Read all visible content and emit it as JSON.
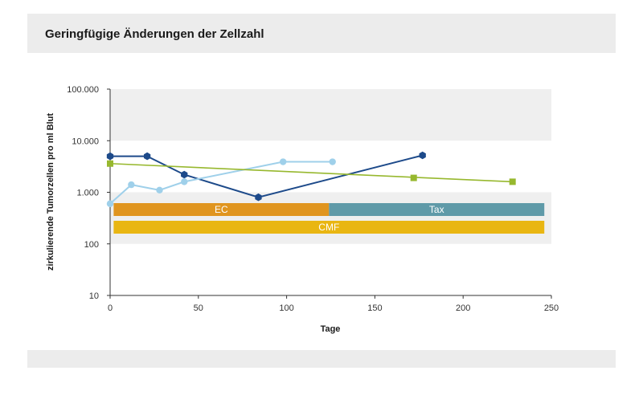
{
  "header": {
    "title": "Geringfügige Änderungen der Zellzahl"
  },
  "colors": {
    "band": "#efefef",
    "axis": "#333333",
    "dark_blue": "#1d4a8a",
    "light_blue": "#9fd0ea",
    "green": "#97b82e",
    "ec": "#e0951f",
    "tax": "#5f9aa8",
    "cmf": "#e9b612"
  },
  "chart_data": {
    "type": "line",
    "title": "",
    "xlabel": "Tage",
    "ylabel": "zirkulierende Tumorzellen pro ml Blut",
    "xlim": [
      0,
      250
    ],
    "ylim": [
      10,
      100000
    ],
    "yscale": "log",
    "x_ticks": [
      0,
      50,
      100,
      150,
      200,
      250
    ],
    "x_tick_labels": [
      "0",
      "50",
      "100",
      "150",
      "200",
      "250"
    ],
    "y_ticks": [
      10,
      100,
      1000,
      10000,
      100000
    ],
    "y_tick_labels": [
      "10",
      "100",
      "1.000",
      "10.000",
      "100.000"
    ],
    "shaded_bands": [
      [
        100,
        1000
      ],
      [
        10000,
        100000
      ]
    ],
    "series": [
      {
        "color": "dark_blue",
        "marker": "hexagon",
        "x": [
          0,
          21,
          42,
          84,
          177
        ],
        "y": [
          5000,
          5000,
          2200,
          800,
          5200
        ]
      },
      {
        "color": "light_blue",
        "marker": "circle",
        "x": [
          0,
          12,
          28,
          42,
          98,
          126
        ],
        "y": [
          600,
          1400,
          1100,
          1600,
          3900,
          3900
        ]
      },
      {
        "color": "green",
        "marker": "square",
        "line": [
          0,
          229
        ],
        "x": [
          0,
          172,
          228
        ],
        "y": [
          3600,
          1900,
          1600
        ]
      }
    ],
    "treatment_bars": [
      {
        "label": "EC",
        "start": 2,
        "end": 124,
        "row": 0,
        "color": "ec"
      },
      {
        "label": "Tax",
        "start": 124,
        "end": 246,
        "row": 0,
        "color": "tax"
      },
      {
        "label": "CMF",
        "start": 2,
        "end": 246,
        "row": 1,
        "color": "cmf"
      }
    ]
  }
}
